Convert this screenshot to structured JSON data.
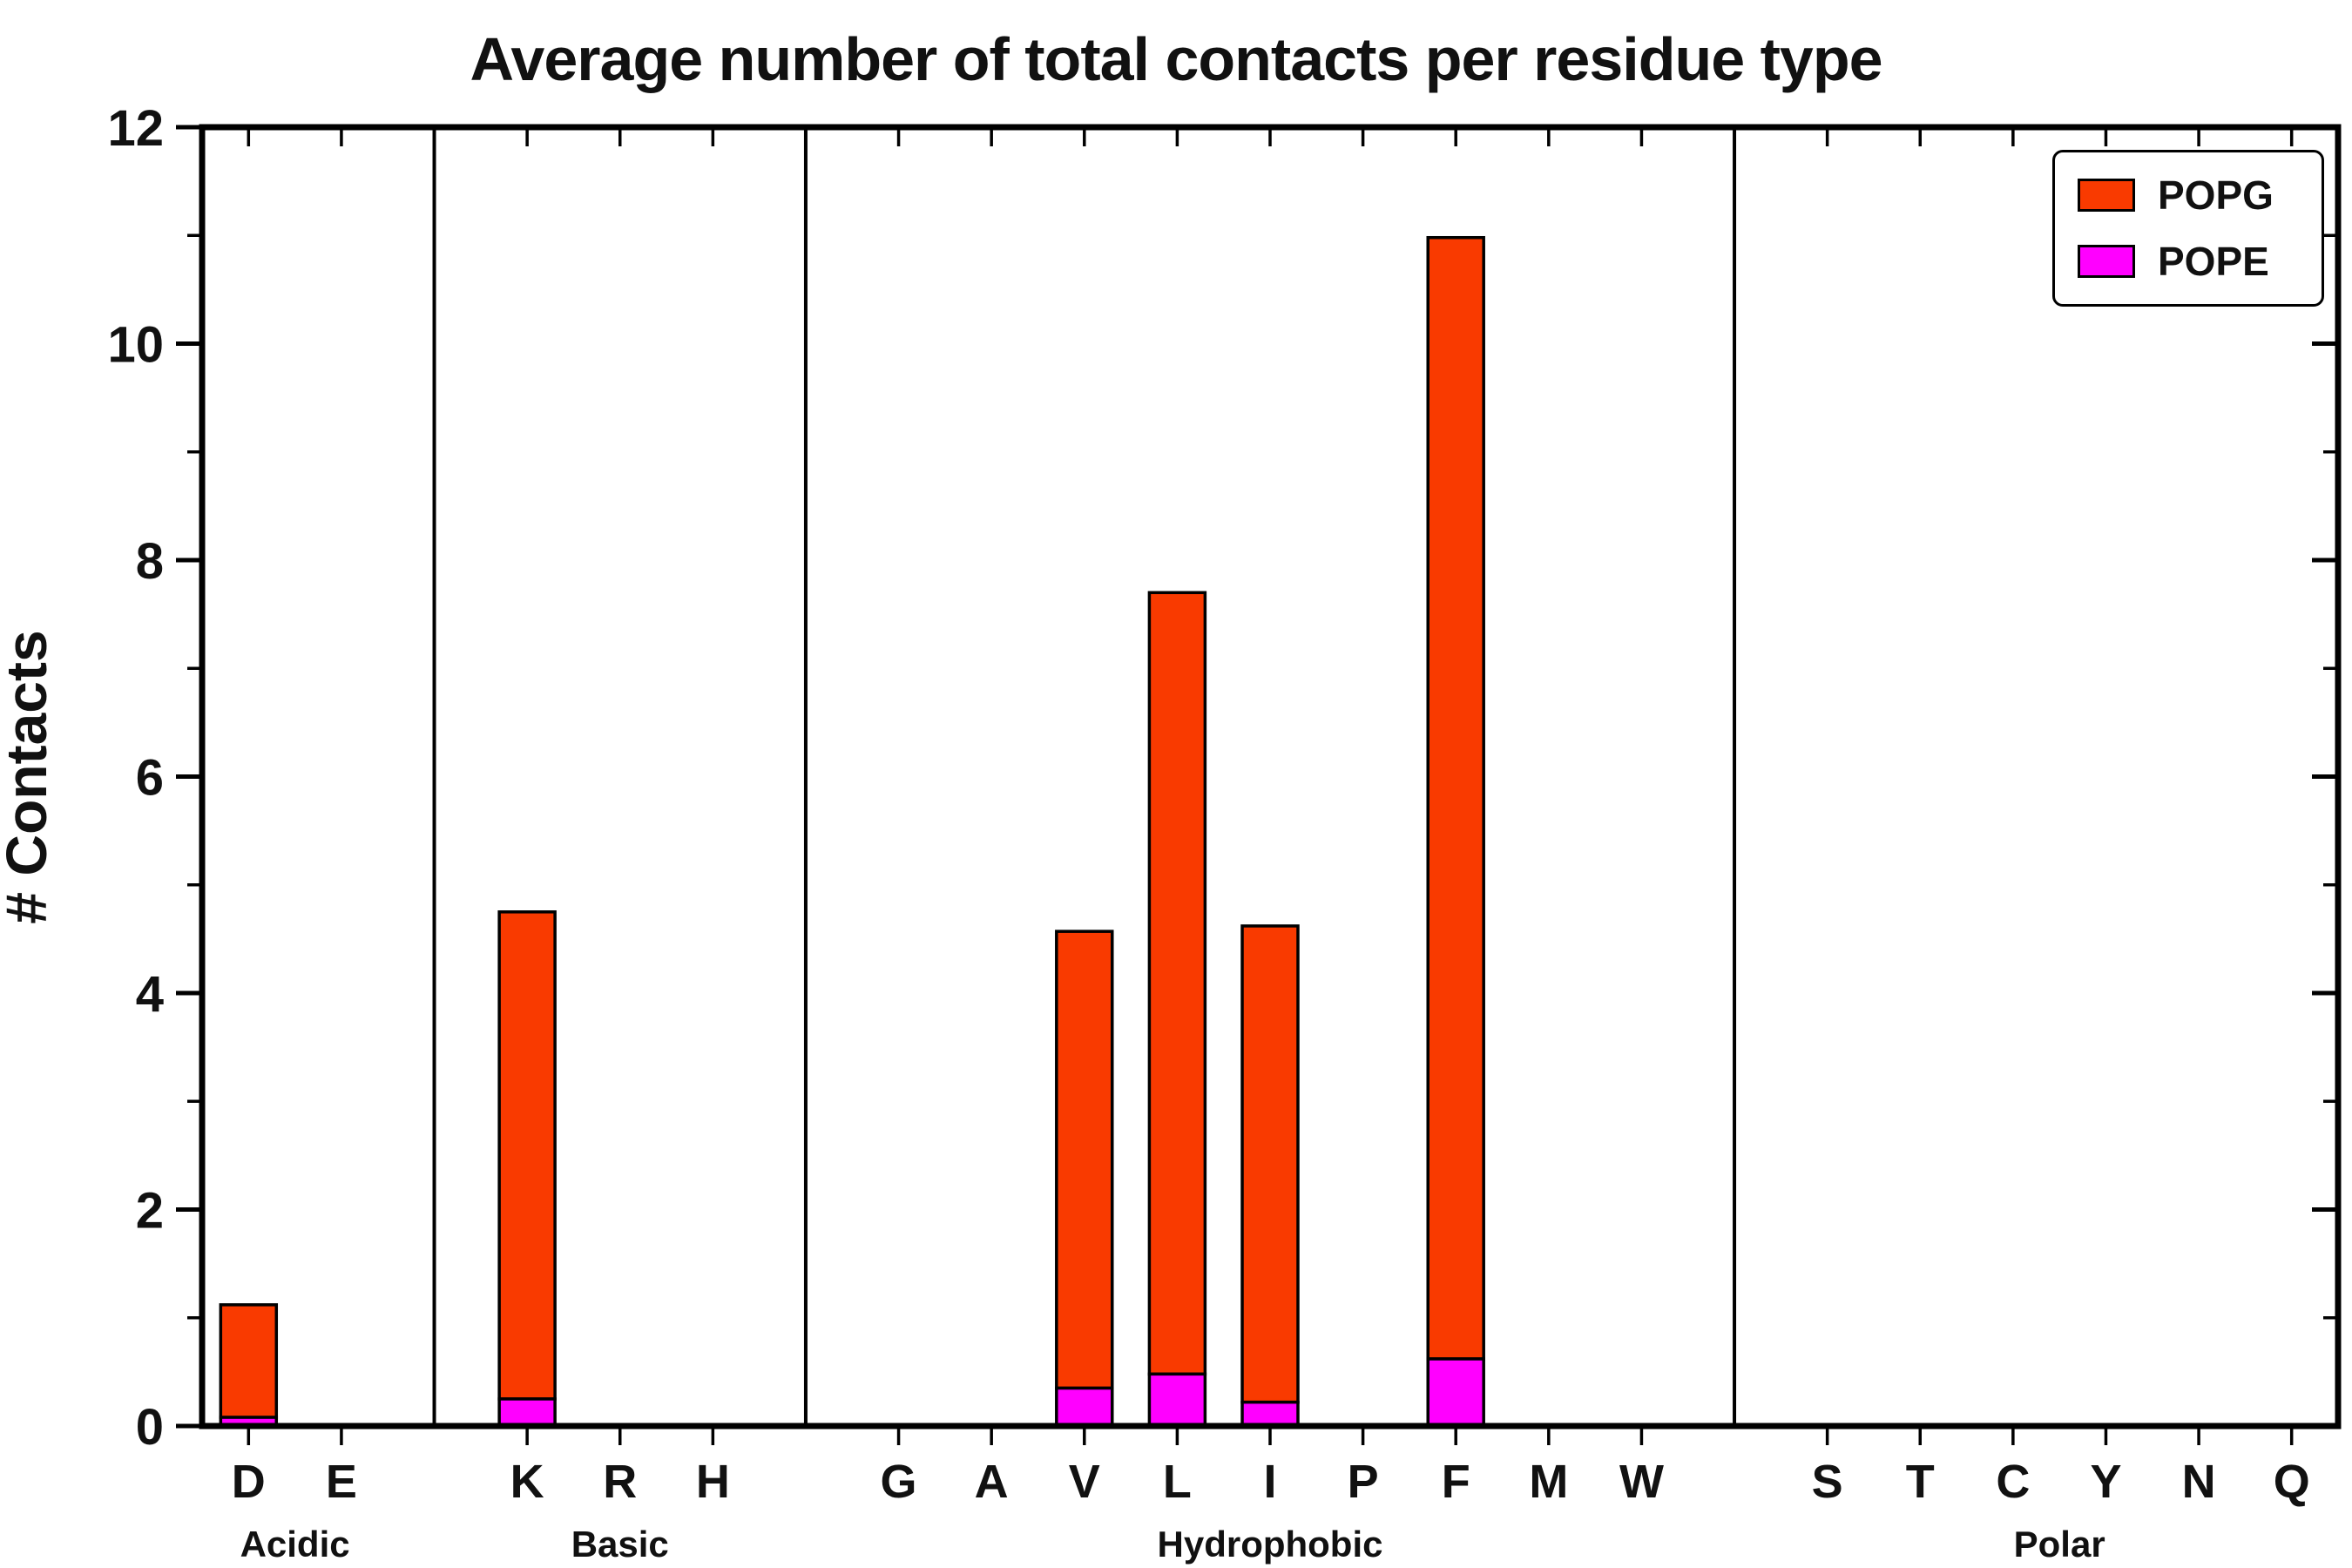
{
  "title": "Average number of total contacts per residue type",
  "ylabel": "# Contacts",
  "chart_data": {
    "type": "bar",
    "stacked": true,
    "ylim": [
      0,
      12
    ],
    "yticks_major": [
      0,
      2,
      4,
      6,
      8,
      10,
      12
    ],
    "yticks_minor": [
      1,
      3,
      5,
      7,
      9,
      11
    ],
    "grid": false,
    "legend_position": "upper right",
    "groups": [
      {
        "label": "Acidic",
        "categories": [
          "D",
          "E"
        ]
      },
      {
        "label": "Basic",
        "categories": [
          "K",
          "R",
          "H"
        ]
      },
      {
        "label": "Hydrophobic",
        "categories": [
          "G",
          "A",
          "V",
          "L",
          "I",
          "P",
          "F",
          "M",
          "W"
        ]
      },
      {
        "label": "Polar",
        "categories": [
          "S",
          "T",
          "C",
          "Y",
          "N",
          "Q"
        ]
      }
    ],
    "series": [
      {
        "name": "POPG",
        "color": "#F93A00",
        "values": {
          "D": 1.04,
          "E": 0,
          "K": 4.5,
          "R": 0,
          "H": 0,
          "G": 0,
          "A": 0,
          "V": 4.22,
          "L": 7.22,
          "I": 4.4,
          "P": 0,
          "F": 10.36,
          "M": 0,
          "W": 0,
          "S": 0,
          "T": 0,
          "C": 0,
          "Y": 0,
          "N": 0,
          "Q": 0
        }
      },
      {
        "name": "POPE",
        "color": "#FF00FF",
        "values": {
          "D": 0.08,
          "E": 0,
          "K": 0.25,
          "R": 0,
          "H": 0,
          "G": 0,
          "A": 0,
          "V": 0.35,
          "L": 0.48,
          "I": 0.22,
          "P": 0,
          "F": 0.62,
          "M": 0,
          "W": 0,
          "S": 0,
          "T": 0,
          "C": 0,
          "Y": 0,
          "N": 0,
          "Q": 0
        }
      }
    ],
    "totals": {
      "D": 1.12,
      "E": 0,
      "K": 4.75,
      "R": 0,
      "H": 0,
      "G": 0,
      "A": 0,
      "V": 4.57,
      "L": 7.7,
      "I": 4.62,
      "P": 0,
      "F": 10.98,
      "M": 0,
      "W": 0,
      "S": 0,
      "T": 0,
      "C": 0,
      "Y": 0,
      "N": 0,
      "Q": 0
    }
  }
}
